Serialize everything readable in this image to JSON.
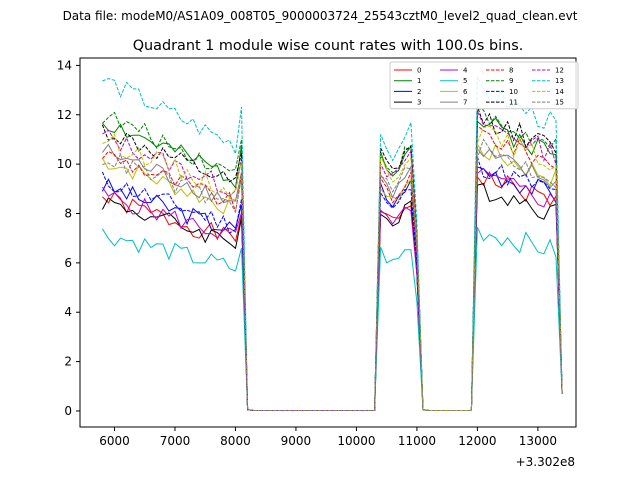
{
  "chart_data": {
    "type": "line",
    "suptitle": "Data file: modeM0/AS1A09_008T05_9000003724_25543cztM0_level2_quad_clean.evt",
    "title": "Quadrant 1 module wise count rates with 100.0s bins.",
    "xlabel": "",
    "ylabel": "",
    "x_offset_label": "+3.302e8",
    "x_ticks": [
      6000,
      7000,
      8000,
      9000,
      10000,
      11000,
      12000,
      13000
    ],
    "x_tick_labels": [
      "6000",
      "7000",
      "8000",
      "9000",
      "10000",
      "11000",
      "12000",
      "13000"
    ],
    "y_ticks": [
      0,
      2,
      4,
      6,
      8,
      10,
      12,
      14
    ],
    "y_tick_labels": [
      "0",
      "2",
      "4",
      "6",
      "8",
      "10",
      "12",
      "14"
    ],
    "xlim": [
      5430,
      13630
    ],
    "ylim": [
      -0.65,
      14.3
    ],
    "legend_position": "upper right",
    "legend_columns": 4,
    "segments": [
      {
        "start": 5800,
        "end": 8200,
        "step": 100
      },
      {
        "start": 8200,
        "end": 10300,
        "step": 100
      },
      {
        "start": 10300,
        "end": 11100,
        "step": 100
      },
      {
        "start": 11100,
        "end": 11900,
        "step": 100
      },
      {
        "start": 11900,
        "end": 13400,
        "step": 100
      }
    ],
    "series": [
      {
        "name": "0",
        "color": "#ff0000",
        "dash": "solid",
        "level1": 7.2,
        "level2": 8.0,
        "level3": 8.6
      },
      {
        "name": "1",
        "color": "#008000",
        "dash": "solid",
        "level1": 9.8,
        "level2": 10.2,
        "level3": 10.6
      },
      {
        "name": "2",
        "color": "#0000ff",
        "dash": "solid",
        "level1": 7.6,
        "level2": 8.8,
        "level3": 8.9
      },
      {
        "name": "3",
        "color": "#000000",
        "dash": "solid",
        "level1": 7.1,
        "level2": 7.9,
        "level3": 8.2
      },
      {
        "name": "4",
        "color": "#c000c0",
        "dash": "solid",
        "level1": 7.3,
        "level2": 7.9,
        "level3": 8.6
      },
      {
        "name": "5",
        "color": "#00bfbf",
        "dash": "solid",
        "level1": 6.0,
        "level2": 6.3,
        "level3": 6.6
      },
      {
        "name": "6",
        "color": "#bfbf00",
        "dash": "solid",
        "level1": 8.5,
        "level2": 8.9,
        "level3": 9.6
      },
      {
        "name": "7",
        "color": "#808080",
        "dash": "solid",
        "level1": 8.8,
        "level2": 9.3,
        "level3": 9.4
      },
      {
        "name": "8",
        "color": "#ff0000",
        "dash": "dashed",
        "level1": 8.7,
        "level2": 9.0,
        "level3": 10.2
      },
      {
        "name": "9",
        "color": "#008000",
        "dash": "dashed",
        "level1": 10.0,
        "level2": 10.2,
        "level3": 10.8
      },
      {
        "name": "10",
        "color": "#0000ff",
        "dash": "dashed",
        "level1": 7.8,
        "level2": 8.6,
        "level3": 9.0
      },
      {
        "name": "11",
        "color": "#000000",
        "dash": "dashed",
        "level1": 9.5,
        "level2": 10.2,
        "level3": 10.8
      },
      {
        "name": "12",
        "color": "#c000c0",
        "dash": "dashed",
        "level1": 9.3,
        "level2": 9.9,
        "level3": 10.6
      },
      {
        "name": "13",
        "color": "#00bfbf",
        "dash": "dashed",
        "level1": 11.2,
        "level2": 10.9,
        "level3": 11.8
      },
      {
        "name": "14",
        "color": "#bfbf00",
        "dash": "dashed",
        "level1": 9.2,
        "level2": 9.9,
        "level3": 10.2
      },
      {
        "name": "15",
        "color": "#808080",
        "dash": "dashed",
        "level1": 8.6,
        "level2": 9.4,
        "level3": 9.6
      }
    ]
  }
}
